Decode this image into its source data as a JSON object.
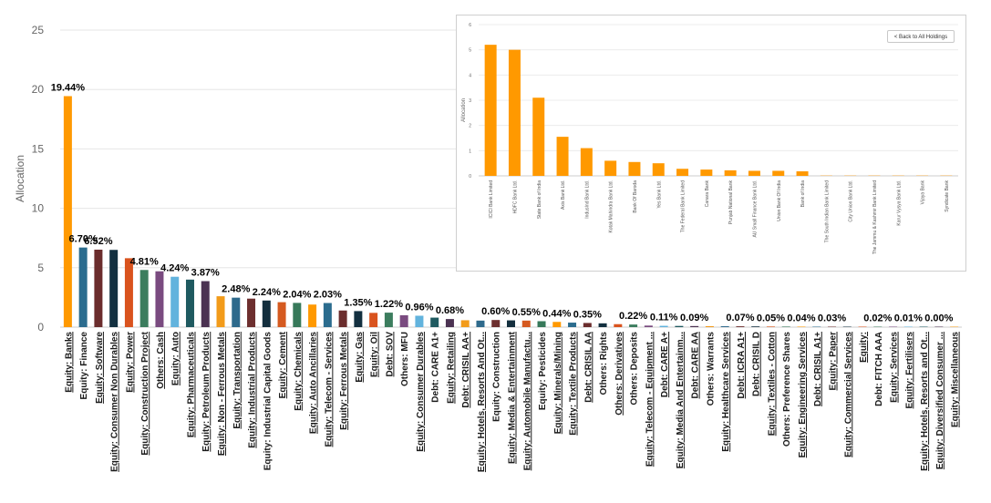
{
  "chart_data": [
    {
      "type": "bar",
      "ylabel": "Allocation",
      "ylim": [
        0,
        25
      ],
      "yticks": [
        0,
        5,
        10,
        15,
        20,
        25
      ],
      "grid": true,
      "categories": [
        "Equity: Banks",
        "Equity: Finance",
        "Equity: Software",
        "Equity: Consumer Non Durables",
        "Equity: Power",
        "Equity: Construction Project",
        "Others: Cash",
        "Equity: Auto",
        "Equity: Pharmaceuticals",
        "Equity: Petroleum Products",
        "Equity: Non - Ferrous Metals",
        "Equity: Transportation",
        "Equity: Industrial Products",
        "Equity: Industrial Capital Goods",
        "Equity: Cement",
        "Equity: Chemicals",
        "Equity: Auto Ancillaries",
        "Equity: Telecom - Services",
        "Equity: Ferrous Metals",
        "Equity: Gas",
        "Equity: Oil",
        "Debt: SOV",
        "Others: MFU",
        "Equity: Consumer Durables",
        "Debt: CARE A1+",
        "Equity: Retailing",
        "Debt: CRISIL AA+",
        "Equity: Hotels, Resorts And Ot...",
        "Equity: Construction",
        "Equity: Media & Entertainment",
        "Equity: Automobile Manufactu...",
        "Equity: Pesticides",
        "Equity: Minerals/Mining",
        "Equity: Textile Products",
        "Debt: CRISIL AA",
        "Others: Rights",
        "Others: Derivatives",
        "Others: Deposits",
        "Equity: Telecom - Equipment ...",
        "Debt: CARE A+",
        "Equity: Media And Entertainm...",
        "Debt: CARE AA",
        "Others: Warrants",
        "Equity: Healthcare Services",
        "Debt: ICRA A1+",
        "Debt: CRISIL D",
        "Equity: Textiles - Cotton",
        "Others: Preference Shares",
        "Equity: Engineering Services",
        "Debt: CRISIL A1+",
        "Equity: Paper",
        "Equity: Commercial Services",
        "Equity:",
        "Debt: FITCH AAA",
        "Equity: Services",
        "Equity: Fertilisers",
        "Equity: Hotels, Resorts and Ot...",
        "Equity: Diversified Consumer ...",
        "Equity: Miscellaneous"
      ],
      "values": [
        19.44,
        6.7,
        6.52,
        6.5,
        5.8,
        4.81,
        4.7,
        4.24,
        4.0,
        3.87,
        2.6,
        2.48,
        2.4,
        2.24,
        2.1,
        2.04,
        1.9,
        2.03,
        1.4,
        1.35,
        1.2,
        1.22,
        1.0,
        0.96,
        0.8,
        0.68,
        0.58,
        0.55,
        0.6,
        0.57,
        0.55,
        0.5,
        0.44,
        0.38,
        0.35,
        0.32,
        0.25,
        0.22,
        0.13,
        0.11,
        0.1,
        0.09,
        0.08,
        0.075,
        0.07,
        0.06,
        0.05,
        0.045,
        0.04,
        0.035,
        0.03,
        0.025,
        0.02,
        0.02,
        0.015,
        0.01,
        0.008,
        0.005,
        0.002
      ],
      "data_labels": [
        "19.44%",
        "6.70%",
        "6.52%",
        "",
        "",
        "4.81%",
        "",
        "4.24%",
        "",
        "3.87%",
        "",
        "2.48%",
        "",
        "2.24%",
        "",
        "2.04%",
        "",
        "2.03%",
        "",
        "1.35%",
        "",
        "1.22%",
        "",
        "0.96%",
        "",
        "0.68%",
        "",
        "",
        "0.60%",
        "",
        "0.55%",
        "",
        "0.44%",
        "",
        "0.35%",
        "",
        "",
        "0.22%",
        "",
        "0.11%",
        "",
        "0.09%",
        "",
        "",
        "0.07%",
        "",
        "0.05%",
        "",
        "0.04%",
        "",
        "0.03%",
        "",
        "",
        "0.02%",
        "",
        "0.01%",
        "",
        "0.00%",
        ""
      ],
      "underlined": [
        true,
        false,
        true,
        true,
        true,
        true,
        true,
        true,
        true,
        true,
        true,
        true,
        true,
        false,
        true,
        true,
        true,
        true,
        true,
        true,
        true,
        true,
        false,
        true,
        false,
        true,
        true,
        true,
        false,
        true,
        true,
        false,
        true,
        true,
        true,
        false,
        true,
        false,
        true,
        true,
        true,
        true,
        false,
        true,
        true,
        true,
        true,
        false,
        true,
        true,
        true,
        true,
        true,
        false,
        true,
        true,
        true,
        true,
        true
      ],
      "colors": [
        "#ff9900",
        "#2b6c8e",
        "#6b2d2d",
        "#133040",
        "#d9531e",
        "#3c7d5e",
        "#7a4b80",
        "#62b3dd",
        "#1f5a60",
        "#4b3252",
        "#f29b1a",
        "#2e6a8c",
        "#6d2f2f",
        "#142f3e",
        "#d55a20",
        "#37795a"
      ]
    },
    {
      "type": "bar",
      "ylabel": "Allocation",
      "ylim": [
        0,
        6
      ],
      "yticks": [
        0,
        1,
        2,
        3,
        4,
        5,
        6
      ],
      "grid": true,
      "color": "#ff9900",
      "categories": [
        "ICICI Bank Limited",
        "HDFC Bank Ltd.",
        "State Bank of India",
        "Axis Bank Ltd.",
        "IndusInd Bank Ltd.",
        "Kotak Mahindra Bank Ltd.",
        "Bank Of Baroda",
        "Yes Bank Ltd.",
        "The Federal Bank Limited",
        "Canara Bank",
        "Punjab National Bank",
        "AU Small Finance Bank Ltd.",
        "Union Bank Of India",
        "Bank of India",
        "The South Indian Bank Limited",
        "City Union Bank Ltd.",
        "The Jammu & Kashmir Bank Limited",
        "Karur Vysya Bank Ltd.",
        "Vijaya Bank",
        "Syndicate Bank"
      ],
      "values": [
        5.2,
        5.0,
        3.1,
        1.55,
        1.1,
        0.6,
        0.55,
        0.5,
        0.28,
        0.25,
        0.22,
        0.2,
        0.2,
        0.18,
        0.01,
        0.01,
        0.005,
        0.005,
        0.003,
        0.002
      ]
    }
  ],
  "inset": {
    "back_button_label": "< Back to All Holdings"
  }
}
